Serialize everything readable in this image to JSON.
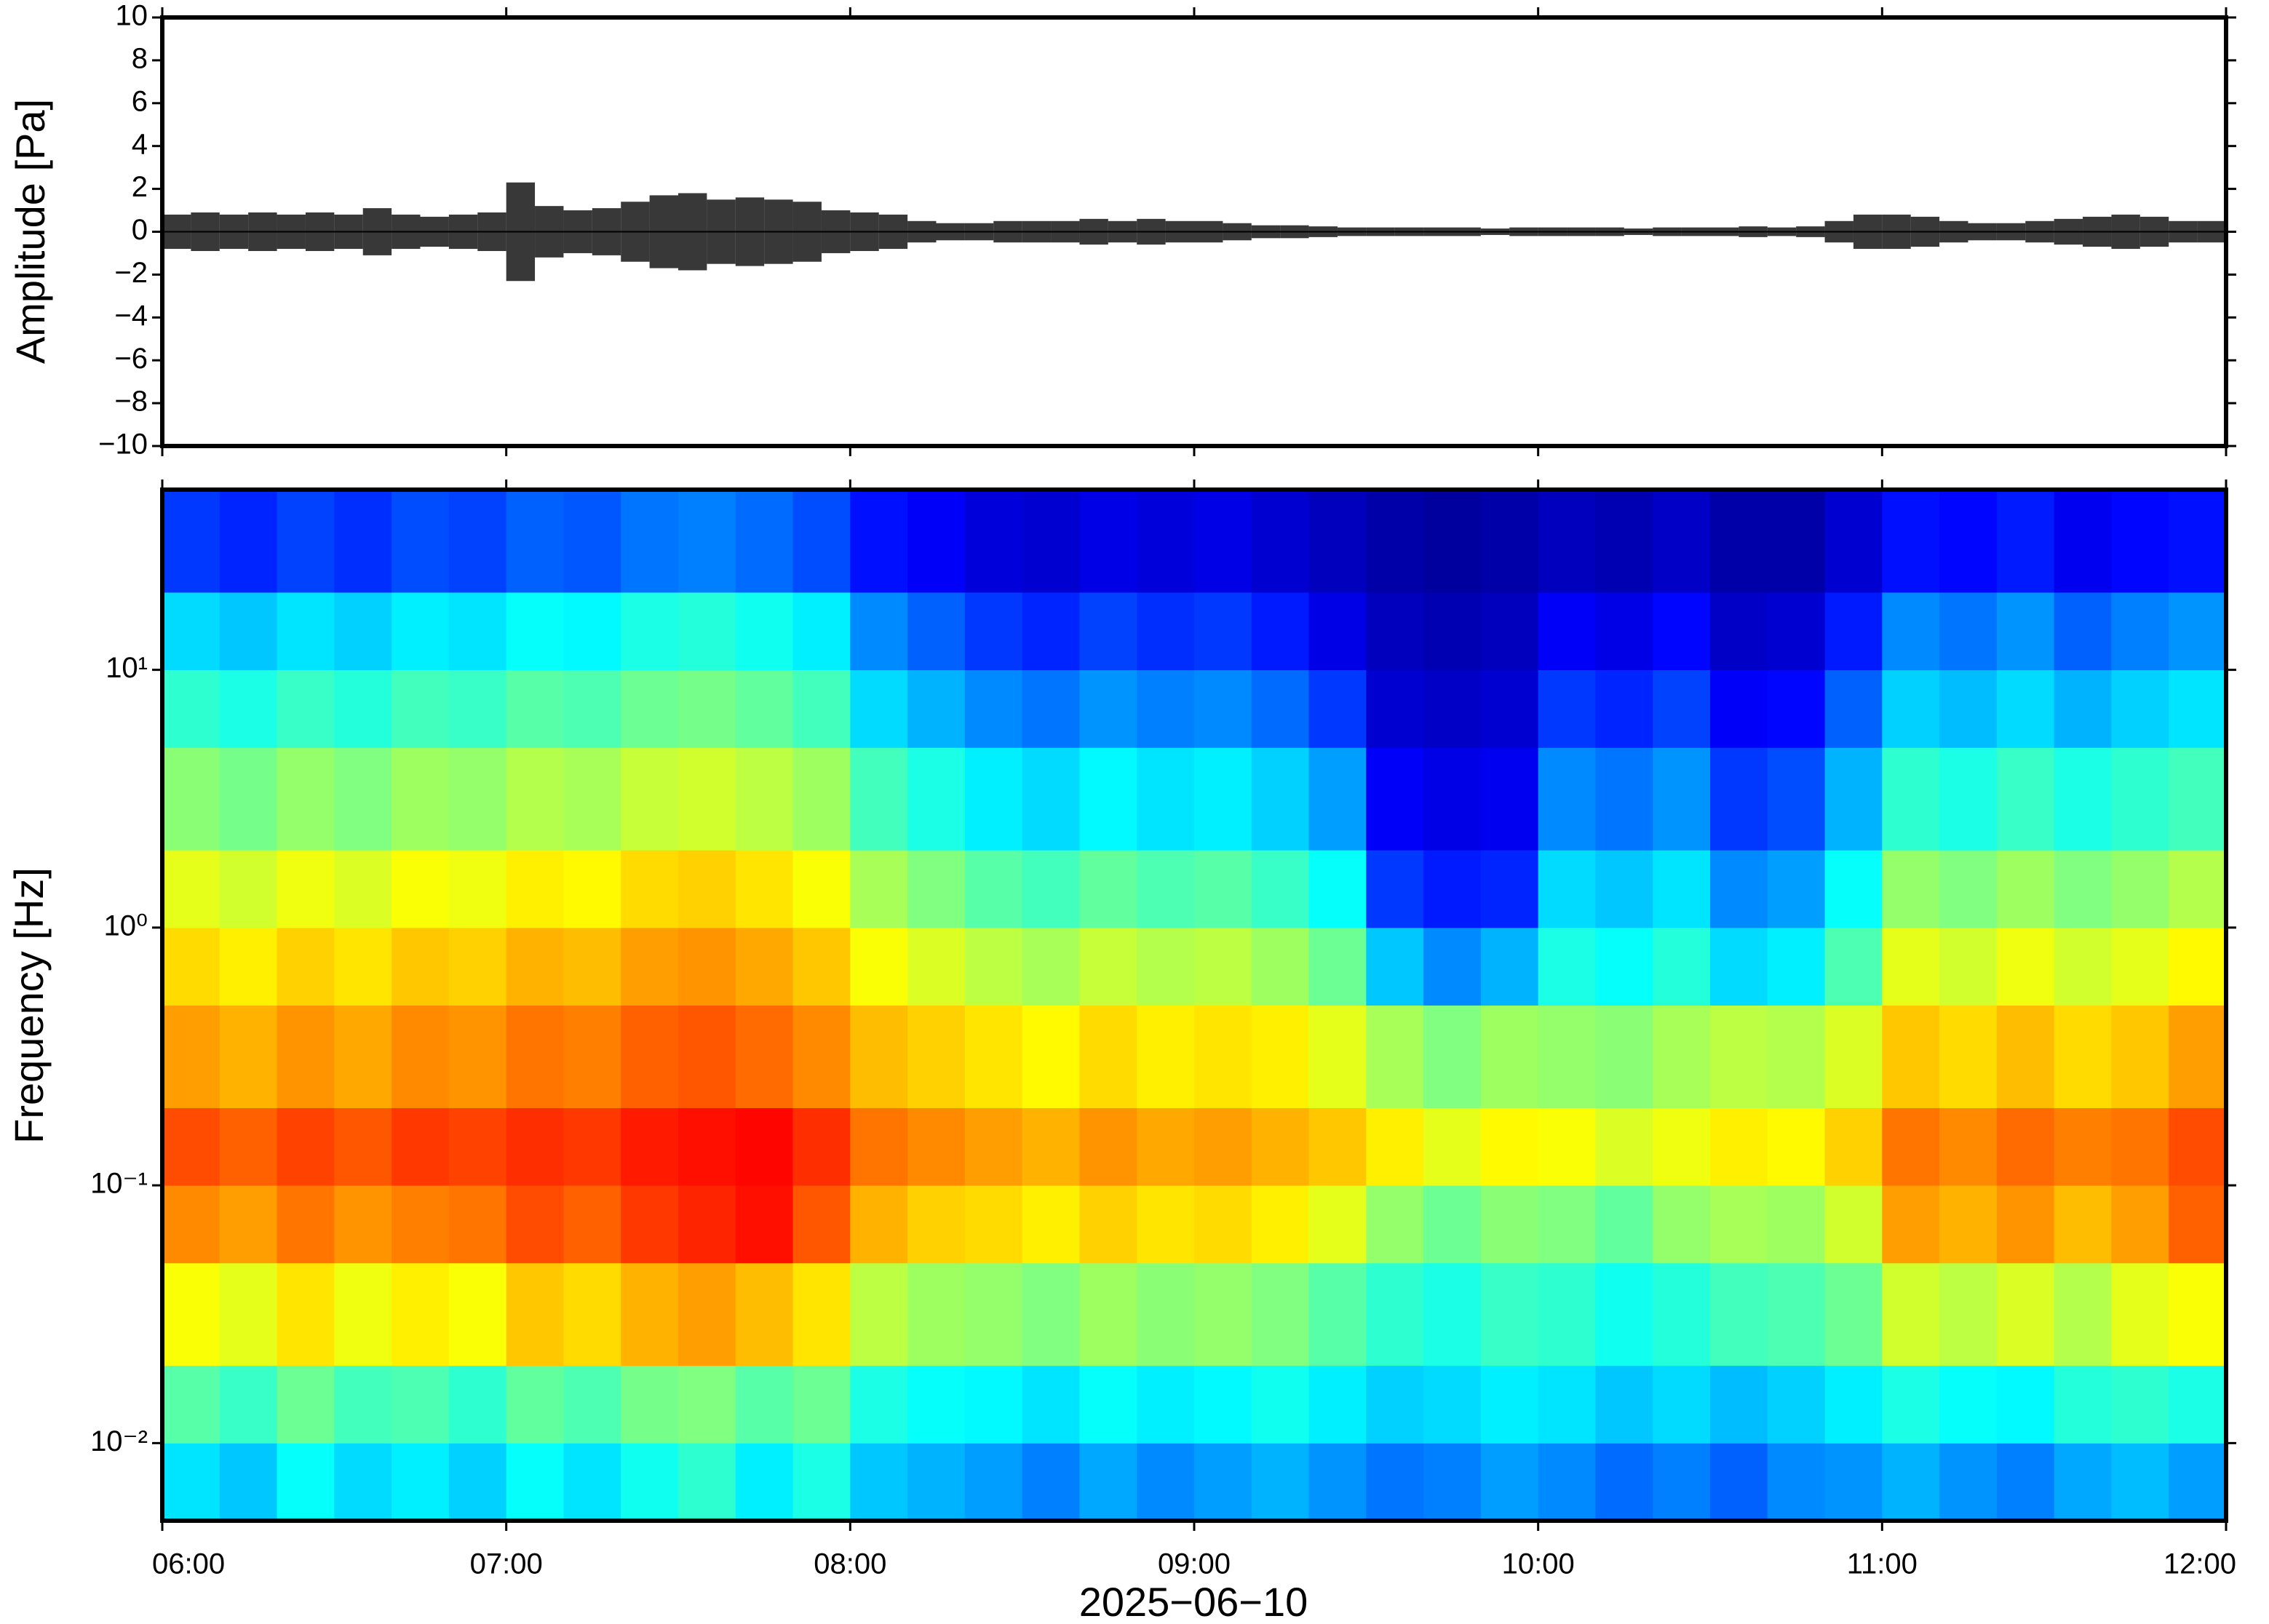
{
  "chart_data": [
    {
      "type": "envelope",
      "ylabel": "Amplitude [Pa]",
      "color": "#000000",
      "x": [
        "06:00",
        "06:05",
        "06:10",
        "06:15",
        "06:20",
        "06:25",
        "06:30",
        "06:35",
        "06:40",
        "06:45",
        "06:50",
        "06:55",
        "07:00",
        "07:05",
        "07:10",
        "07:15",
        "07:20",
        "07:25",
        "07:30",
        "07:35",
        "07:40",
        "07:45",
        "07:50",
        "07:55",
        "08:00",
        "08:05",
        "08:10",
        "08:15",
        "08:20",
        "08:25",
        "08:30",
        "08:35",
        "08:40",
        "08:45",
        "08:50",
        "08:55",
        "09:00",
        "09:05",
        "09:10",
        "09:15",
        "09:20",
        "09:25",
        "09:30",
        "09:35",
        "09:40",
        "09:45",
        "09:50",
        "09:55",
        "10:00",
        "10:05",
        "10:10",
        "10:15",
        "10:20",
        "10:25",
        "10:30",
        "10:35",
        "10:40",
        "10:45",
        "10:50",
        "10:55",
        "11:00",
        "11:05",
        "11:10",
        "11:15",
        "11:20",
        "11:25",
        "11:30",
        "11:35",
        "11:40",
        "11:45",
        "11:50",
        "11:55"
      ],
      "values": [
        0.8,
        0.9,
        0.8,
        0.9,
        0.8,
        0.9,
        0.8,
        1.1,
        0.8,
        0.7,
        0.8,
        0.9,
        2.3,
        1.2,
        1.0,
        1.1,
        1.4,
        1.7,
        1.8,
        1.5,
        1.6,
        1.5,
        1.4,
        1.0,
        0.9,
        0.8,
        0.5,
        0.4,
        0.4,
        0.5,
        0.5,
        0.5,
        0.6,
        0.5,
        0.6,
        0.5,
        0.5,
        0.4,
        0.3,
        0.3,
        0.25,
        0.2,
        0.2,
        0.2,
        0.2,
        0.2,
        0.15,
        0.2,
        0.2,
        0.2,
        0.2,
        0.15,
        0.2,
        0.2,
        0.2,
        0.25,
        0.2,
        0.25,
        0.5,
        0.8,
        0.8,
        0.7,
        0.5,
        0.4,
        0.4,
        0.5,
        0.6,
        0.7,
        0.8,
        0.7,
        0.5,
        0.5
      ],
      "xlim": [
        "06:00",
        "12:00"
      ],
      "xticks": [
        "06:00",
        "07:00",
        "08:00",
        "09:00",
        "10:00",
        "11:00",
        "12:00"
      ],
      "ylim": [
        -10,
        10
      ],
      "yticks": [
        {
          "value": -10,
          "label": "−10"
        },
        {
          "value": -8,
          "label": "−8"
        },
        {
          "value": -6,
          "label": "−6"
        },
        {
          "value": -4,
          "label": "−4"
        },
        {
          "value": -2,
          "label": "−2"
        },
        0,
        2,
        4,
        6,
        8,
        10
      ]
    },
    {
      "type": "heatmap",
      "ylabel": "Frequency [Hz]",
      "xlabel": "2025−06−10",
      "ylog": true,
      "colormap": "jet",
      "zlim": [
        0,
        10
      ],
      "xlim": [
        "06:00",
        "12:00"
      ],
      "xticks": [
        "06:00",
        "07:00",
        "08:00",
        "09:00",
        "10:00",
        "11:00",
        "12:00"
      ],
      "ylim": [
        0.005,
        50
      ],
      "yticks": [
        {
          "value": 0.01,
          "label": "10⁻²"
        },
        {
          "value": 0.1,
          "label": "10⁻¹"
        },
        {
          "value": 1,
          "label": "10⁰"
        },
        {
          "value": 10,
          "label": "10¹"
        }
      ],
      "x": [
        "06:00",
        "06:10",
        "06:20",
        "06:30",
        "06:40",
        "06:50",
        "07:00",
        "07:10",
        "07:20",
        "07:30",
        "07:40",
        "07:50",
        "08:00",
        "08:10",
        "08:20",
        "08:30",
        "08:40",
        "08:50",
        "09:00",
        "09:10",
        "09:20",
        "09:30",
        "09:40",
        "09:50",
        "10:00",
        "10:10",
        "10:20",
        "10:30",
        "10:40",
        "10:50",
        "11:00",
        "11:10",
        "11:20",
        "11:30",
        "11:40",
        "11:50"
      ],
      "bins": [
        0.005,
        0.01,
        0.02,
        0.05,
        0.1,
        0.2,
        0.5,
        1,
        2,
        5,
        10,
        20,
        50
      ],
      "z": [
        [
          3.5,
          3.2,
          3.8,
          3.4,
          3.6,
          3.3,
          3.8,
          3.5,
          3.9,
          4.2,
          3.6,
          4.0,
          3.2,
          3.0,
          2.8,
          2.5,
          2.9,
          2.6,
          2.8,
          3.0,
          2.7,
          2.4,
          2.5,
          2.8,
          2.6,
          2.3,
          2.5,
          2.2,
          2.6,
          2.7,
          3.0,
          2.7,
          2.5,
          2.9,
          3.1,
          2.8
        ],
        [
          4.6,
          4.3,
          4.8,
          4.4,
          4.5,
          4.2,
          4.7,
          4.5,
          4.9,
          5.0,
          4.6,
          4.8,
          4.0,
          3.8,
          3.7,
          3.5,
          3.8,
          3.6,
          3.7,
          3.9,
          3.6,
          3.3,
          3.4,
          3.6,
          3.5,
          3.2,
          3.4,
          3.1,
          3.3,
          3.6,
          4.0,
          3.8,
          3.7,
          4.1,
          4.2,
          4.0
        ],
        [
          6.2,
          6.0,
          6.5,
          6.1,
          6.4,
          6.2,
          6.8,
          6.6,
          7.0,
          7.2,
          6.9,
          6.5,
          5.6,
          5.3,
          5.2,
          5.0,
          5.3,
          5.1,
          5.2,
          5.0,
          4.6,
          4.2,
          4.0,
          4.3,
          4.2,
          3.9,
          4.1,
          4.4,
          4.5,
          4.8,
          5.8,
          5.6,
          5.9,
          5.5,
          6.0,
          6.2
        ],
        [
          7.4,
          7.2,
          7.6,
          7.3,
          7.5,
          7.6,
          8.0,
          7.8,
          8.2,
          8.4,
          8.6,
          7.9,
          7.0,
          6.7,
          6.6,
          6.4,
          6.7,
          6.5,
          6.6,
          6.4,
          6.0,
          5.2,
          4.8,
          5.1,
          5.0,
          4.7,
          5.2,
          5.4,
          5.3,
          5.8,
          7.2,
          7.0,
          7.3,
          6.9,
          7.2,
          7.8
        ],
        [
          8.0,
          7.8,
          8.1,
          7.9,
          8.2,
          8.1,
          8.3,
          8.2,
          8.5,
          8.6,
          8.7,
          8.3,
          7.6,
          7.4,
          7.2,
          7.0,
          7.3,
          7.1,
          7.2,
          7.0,
          6.8,
          6.4,
          6.0,
          6.3,
          6.2,
          5.9,
          6.1,
          6.4,
          6.3,
          6.7,
          7.6,
          7.4,
          7.7,
          7.5,
          7.6,
          8.0
        ],
        [
          7.2,
          7.0,
          7.3,
          7.1,
          7.4,
          7.3,
          7.6,
          7.5,
          7.8,
          7.9,
          7.7,
          7.4,
          6.9,
          6.7,
          6.5,
          6.3,
          6.6,
          6.4,
          6.5,
          6.4,
          6.0,
          5.4,
          5.0,
          5.3,
          5.2,
          5.1,
          5.4,
          5.6,
          5.5,
          5.9,
          6.8,
          6.6,
          6.9,
          6.6,
          6.8,
          7.2
        ],
        [
          6.6,
          6.4,
          6.7,
          6.5,
          6.8,
          6.7,
          7.0,
          6.9,
          7.2,
          7.3,
          7.1,
          6.8,
          6.2,
          5.9,
          5.6,
          5.4,
          5.7,
          5.5,
          5.6,
          5.3,
          4.8,
          3.2,
          2.6,
          3.0,
          4.0,
          3.8,
          4.1,
          3.4,
          3.6,
          4.5,
          6.0,
          5.8,
          6.1,
          5.8,
          6.0,
          6.3
        ],
        [
          6.0,
          5.8,
          6.1,
          5.9,
          6.2,
          6.1,
          6.4,
          6.3,
          6.6,
          6.7,
          6.5,
          6.2,
          5.4,
          5.0,
          4.6,
          4.4,
          4.7,
          4.5,
          4.6,
          4.3,
          3.8,
          1.8,
          1.5,
          1.6,
          3.4,
          3.2,
          3.5,
          2.6,
          2.8,
          3.8,
          5.2,
          5.0,
          5.3,
          5.0,
          5.2,
          5.5
        ],
        [
          5.1,
          4.9,
          5.2,
          5.0,
          5.3,
          5.2,
          5.5,
          5.4,
          5.7,
          5.8,
          5.6,
          5.3,
          4.4,
          4.0,
          3.6,
          3.4,
          3.7,
          3.5,
          3.6,
          3.3,
          2.8,
          1.2,
          1.0,
          1.1,
          2.6,
          2.4,
          2.7,
          1.8,
          2.0,
          3.0,
          4.2,
          4.0,
          4.3,
          4.0,
          4.2,
          4.4
        ],
        [
          4.2,
          4.0,
          4.3,
          4.1,
          4.4,
          4.3,
          4.6,
          4.5,
          4.8,
          4.9,
          4.7,
          4.4,
          3.4,
          3.0,
          2.6,
          2.4,
          2.7,
          2.5,
          2.6,
          2.3,
          1.8,
          0.8,
          0.7,
          0.8,
          1.8,
          1.6,
          1.9,
          1.2,
          1.3,
          2.2,
          3.3,
          3.1,
          3.4,
          3.0,
          3.3,
          3.5
        ],
        [
          3.4,
          3.2,
          3.5,
          3.3,
          3.6,
          3.5,
          3.8,
          3.7,
          4.0,
          4.1,
          3.9,
          3.6,
          2.6,
          2.2,
          1.8,
          1.6,
          1.9,
          1.7,
          1.8,
          1.5,
          1.0,
          0.6,
          0.5,
          0.6,
          1.2,
          1.0,
          1.3,
          0.7,
          0.8,
          1.5,
          2.6,
          2.4,
          2.7,
          2.2,
          2.5,
          2.7
        ],
        [
          1.8,
          1.6,
          1.9,
          1.7,
          2.0,
          1.9,
          2.2,
          2.1,
          2.4,
          2.5,
          2.3,
          2.0,
          1.4,
          1.2,
          0.9,
          0.8,
          1.0,
          0.9,
          1.0,
          0.8,
          0.6,
          0.4,
          0.3,
          0.4,
          0.6,
          0.5,
          0.7,
          0.4,
          0.4,
          0.8,
          1.4,
          1.3,
          1.5,
          1.1,
          1.3,
          1.4
        ]
      ]
    }
  ]
}
